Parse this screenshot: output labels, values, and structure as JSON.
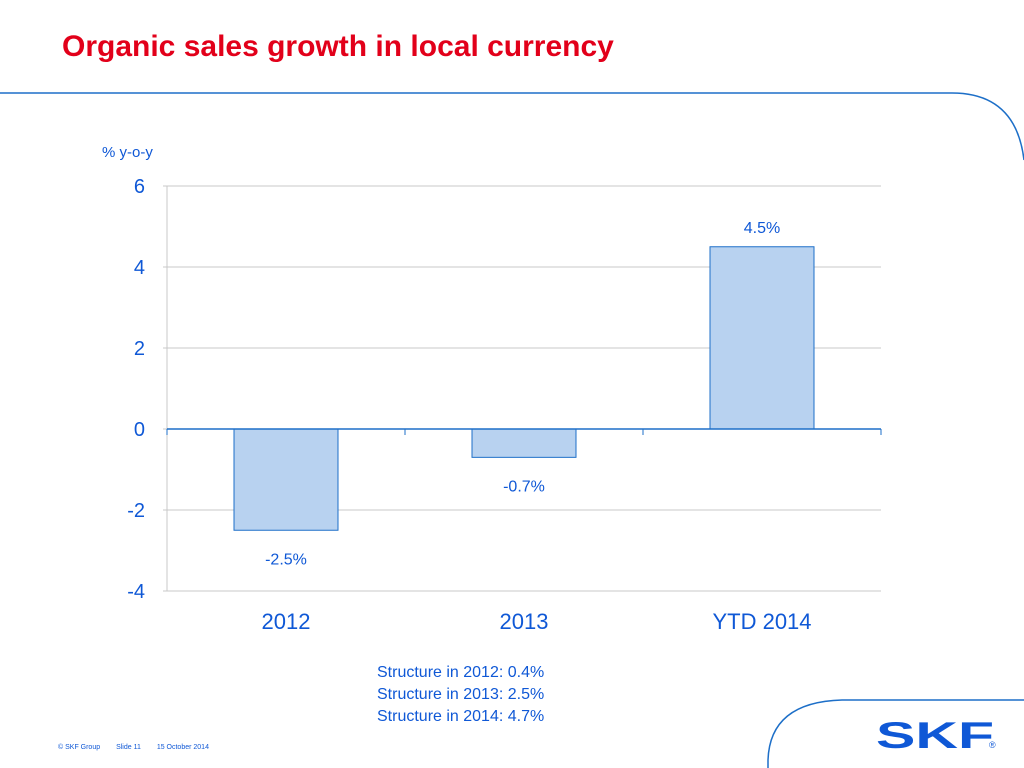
{
  "slide": {
    "title": "Organic sales growth in local currency"
  },
  "chart_data": {
    "type": "bar",
    "title": "",
    "ylabel": "% y-o-y",
    "xlabel": "",
    "categories": [
      "2012",
      "2013",
      "YTD 2014"
    ],
    "values": [
      -2.5,
      -0.7,
      4.5
    ],
    "data_labels": [
      "-2.5%",
      "-0.7%",
      "4.5%"
    ],
    "ylim": [
      -4,
      6
    ],
    "yticks": [
      6,
      4,
      2,
      0,
      -2,
      -4
    ],
    "ytick_labels": [
      "6",
      "4",
      "2",
      "0",
      "-2",
      "-4"
    ],
    "grid": true,
    "legend": "none",
    "bar_fill": "#b8d2f0",
    "bar_stroke": "#1d6fc8",
    "text_color": "#0f58d6"
  },
  "notes": [
    "Structure in 2012: 0.4%",
    "Structure in 2013: 2.5%",
    "Structure in 2014: 4.7%"
  ],
  "footer": {
    "copyright": "© SKF Group",
    "slide": "Slide 11",
    "date": "15 October 2014"
  },
  "logo": {
    "text": "SKF",
    "mark": "®",
    "color": "#0f58d6"
  },
  "colors": {
    "title": "#e2001a",
    "frame_line": "#1d6fc8"
  }
}
